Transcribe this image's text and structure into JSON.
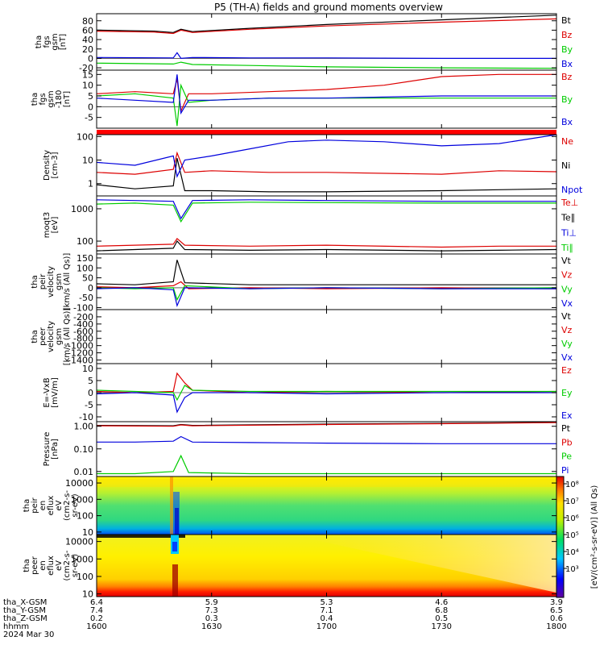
{
  "title": "P5 (TH-A) fields and ground moments overview",
  "colors": {
    "black": "#000000",
    "red": "#dd0000",
    "green": "#00cc00",
    "blue": "#0000dd"
  },
  "chart_data": [
    {
      "type": "line",
      "id": "fgs_gsm",
      "ylabel": [
        "tha",
        "fgs",
        "gsm",
        "[nT]"
      ],
      "ylim": [
        -25,
        95
      ],
      "yticks": [
        -20,
        0,
        20,
        40,
        60,
        80
      ],
      "yticklabels": [
        "-20",
        "0",
        "20",
        "40",
        "60",
        "80"
      ],
      "legend": [
        {
          "name": "Bt",
          "color": "black"
        },
        {
          "name": "Bz",
          "color": "red"
        },
        {
          "name": "By",
          "color": "green"
        },
        {
          "name": "Bx",
          "color": "blue"
        }
      ],
      "series": [
        {
          "name": "Bt",
          "color": "black",
          "x": [
            1600,
            1615,
            1620,
            1622,
            1625,
            1640,
            1700,
            1730,
            1800
          ],
          "y": [
            60,
            58,
            55,
            62,
            57,
            64,
            72,
            82,
            92
          ]
        },
        {
          "name": "Bz",
          "color": "red",
          "x": [
            1600,
            1615,
            1620,
            1622,
            1625,
            1640,
            1700,
            1730,
            1800
          ],
          "y": [
            58,
            56,
            53,
            60,
            55,
            62,
            69,
            77,
            84
          ]
        },
        {
          "name": "By",
          "color": "green",
          "x": [
            1600,
            1620,
            1622,
            1625,
            1640,
            1700,
            1730,
            1800
          ],
          "y": [
            -10,
            -12,
            -8,
            -13,
            -15,
            -18,
            -20,
            -21
          ]
        },
        {
          "name": "Bx",
          "color": "blue",
          "x": [
            1600,
            1620,
            1621,
            1622,
            1625,
            1640,
            1700,
            1730,
            1800
          ],
          "y": [
            2,
            1,
            12,
            0,
            2,
            1,
            1,
            0,
            0
          ]
        }
      ]
    },
    {
      "type": "line",
      "id": "fgs_dsl",
      "ylabel": [
        "tha",
        "fgs",
        "gsm",
        "-180",
        "[nT]"
      ],
      "ylim": [
        -10,
        17
      ],
      "yticks": [
        -5,
        0,
        5,
        10,
        15
      ],
      "yticklabels": [
        "-5",
        "0",
        "5",
        "10",
        "15"
      ],
      "legend": [
        {
          "name": "Bz",
          "color": "red"
        },
        {
          "name": "By",
          "color": "green"
        },
        {
          "name": "Bx",
          "color": "blue"
        }
      ],
      "series": [
        {
          "name": "Bz",
          "color": "red",
          "x": [
            1600,
            1610,
            1620,
            1621,
            1622,
            1624,
            1630,
            1645,
            1700,
            1715,
            1730,
            1745,
            1800
          ],
          "y": [
            6,
            7,
            6,
            13,
            -2,
            6,
            6,
            7,
            8,
            10,
            14,
            15,
            15
          ]
        },
        {
          "name": "By",
          "color": "green",
          "x": [
            1600,
            1610,
            1620,
            1621,
            1622,
            1624,
            1630,
            1645,
            1700,
            1730,
            1800
          ],
          "y": [
            5,
            6,
            4,
            -9,
            10,
            2,
            3,
            4,
            4,
            4,
            4
          ]
        },
        {
          "name": "Bx",
          "color": "blue",
          "x": [
            1600,
            1610,
            1620,
            1621,
            1622,
            1624,
            1630,
            1645,
            1700,
            1730,
            1800
          ],
          "y": [
            4,
            3,
            2,
            15,
            -3,
            3,
            3,
            4,
            4,
            5,
            5
          ]
        }
      ]
    },
    {
      "type": "line",
      "id": "density",
      "ylabel": [
        "Density",
        "[cm-3]"
      ],
      "yscale": "log",
      "ylim": [
        0.3,
        120
      ],
      "yticks": [
        1,
        10,
        100
      ],
      "yticklabels": [
        "1",
        "10",
        "100"
      ],
      "legend": [
        {
          "name": "Ne",
          "color": "red"
        },
        {
          "name": "Ni",
          "color": "black"
        },
        {
          "name": "Npot",
          "color": "blue"
        }
      ],
      "series": [
        {
          "name": "Ne",
          "color": "red",
          "x": [
            1600,
            1610,
            1620,
            1621,
            1623,
            1630,
            1645,
            1700,
            1730,
            1745,
            1800
          ],
          "y": [
            3,
            2.5,
            4,
            20,
            3,
            3.5,
            3,
            3,
            2.5,
            3.5,
            3.2
          ]
        },
        {
          "name": "Ni",
          "color": "black",
          "x": [
            1600,
            1610,
            1620,
            1621,
            1623,
            1630,
            1645,
            1700,
            1730,
            1745,
            1800
          ],
          "y": [
            0.9,
            0.6,
            0.8,
            12,
            0.5,
            0.5,
            0.45,
            0.45,
            0.5,
            0.55,
            0.6
          ]
        },
        {
          "name": "Npot",
          "color": "blue",
          "x": [
            1600,
            1610,
            1620,
            1621,
            1623,
            1630,
            1640,
            1650,
            1700,
            1715,
            1730,
            1745,
            1800
          ],
          "y": [
            8,
            6,
            15,
            2,
            10,
            15,
            30,
            60,
            70,
            60,
            40,
            50,
            120
          ]
        }
      ]
    },
    {
      "type": "line",
      "id": "temperature",
      "ylabel": [
        "moqt3",
        "[eV]"
      ],
      "yscale": "log",
      "ylim": [
        40,
        2500
      ],
      "yticks": [
        100,
        1000
      ],
      "yticklabels": [
        "100",
        "1000"
      ],
      "legend": [
        {
          "name": "Te⊥",
          "color": "red"
        },
        {
          "name": "Te∥",
          "color": "black"
        },
        {
          "name": "Ti⊥",
          "color": "blue"
        },
        {
          "name": "Ti∥",
          "color": "green"
        }
      ],
      "series": [
        {
          "name": "Ti⊥",
          "color": "blue",
          "x": [
            1600,
            1610,
            1620,
            1622,
            1625,
            1640,
            1700,
            1730,
            1800
          ],
          "y": [
            1900,
            1800,
            1700,
            500,
            1800,
            1900,
            1800,
            1700,
            1700
          ]
        },
        {
          "name": "Ti∥",
          "color": "green",
          "x": [
            1600,
            1610,
            1620,
            1622,
            1625,
            1640,
            1700,
            1730,
            1800
          ],
          "y": [
            1400,
            1500,
            1300,
            400,
            1500,
            1600,
            1550,
            1500,
            1500
          ]
        },
        {
          "name": "Te⊥",
          "color": "red",
          "x": [
            1600,
            1610,
            1620,
            1621,
            1623,
            1640,
            1700,
            1730,
            1745,
            1800
          ],
          "y": [
            70,
            75,
            80,
            120,
            75,
            70,
            75,
            65,
            70,
            70
          ]
        },
        {
          "name": "Te∥",
          "color": "black",
          "x": [
            1600,
            1610,
            1620,
            1621,
            1623,
            1640,
            1700,
            1730,
            1745,
            1800
          ],
          "y": [
            50,
            55,
            60,
            100,
            55,
            52,
            55,
            50,
            52,
            55
          ]
        }
      ]
    },
    {
      "type": "line",
      "id": "peir_velocity",
      "ylabel": [
        "tha",
        "peir",
        "velocity",
        "gsm",
        "[km/s (All Qs)]"
      ],
      "ylim": [
        -110,
        170
      ],
      "yticks": [
        -100,
        -50,
        0,
        50,
        100,
        150
      ],
      "yticklabels": [
        "-100",
        "-50",
        "0",
        "50",
        "100",
        "150"
      ],
      "legend": [
        {
          "name": "Vt",
          "color": "black"
        },
        {
          "name": "Vz",
          "color": "red"
        },
        {
          "name": "Vy",
          "color": "green"
        },
        {
          "name": "Vx",
          "color": "blue"
        }
      ],
      "series": [
        {
          "name": "Vz",
          "color": "red",
          "x": [
            1600,
            1610,
            1620,
            1622,
            1624,
            1640,
            1700,
            1730,
            1800
          ],
          "y": [
            5,
            0,
            10,
            30,
            -5,
            0,
            -5,
            0,
            -5
          ]
        },
        {
          "name": "Vy",
          "color": "green",
          "x": [
            1600,
            1610,
            1620,
            1621,
            1623,
            1640,
            1700,
            1730,
            1800
          ],
          "y": [
            0,
            -5,
            0,
            -60,
            10,
            -5,
            0,
            -5,
            0
          ]
        },
        {
          "name": "Vx",
          "color": "blue",
          "x": [
            1600,
            1610,
            1620,
            1621,
            1623,
            1640,
            1700,
            1730,
            1800
          ],
          "y": [
            -5,
            0,
            -10,
            -90,
            0,
            -5,
            0,
            -5,
            -5
          ]
        },
        {
          "name": "Vt",
          "color": "black",
          "x": [
            1600,
            1610,
            1620,
            1621,
            1623,
            1640,
            1700,
            1730,
            1800
          ],
          "y": [
            20,
            15,
            30,
            140,
            25,
            15,
            15,
            15,
            15
          ]
        }
      ]
    },
    {
      "type": "line",
      "id": "peer_velocity",
      "ylabel": [
        "tha",
        "peer",
        "velocity",
        "gsm",
        "[km/s (All Qs)]"
      ],
      "ylim": [
        -1500,
        0
      ],
      "yticks": [
        -1400,
        -1200,
        -1000,
        -800,
        -600,
        -400,
        -200
      ],
      "yticklabels": [
        "-1400",
        "-1200",
        "-1000",
        "-800",
        "-600",
        "-400",
        "-200"
      ],
      "legend": [
        {
          "name": "Vt",
          "color": "black"
        },
        {
          "name": "Vz",
          "color": "red"
        },
        {
          "name": "Vy",
          "color": "green"
        },
        {
          "name": "Vx",
          "color": "blue"
        }
      ],
      "series": []
    },
    {
      "type": "line",
      "id": "efield",
      "ylabel": [
        "E=-VxB",
        "[mV/m]"
      ],
      "ylim": [
        -12,
        12
      ],
      "yticks": [
        -10,
        -5,
        0,
        5,
        10
      ],
      "yticklabels": [
        "-10",
        "-5",
        "0",
        "5",
        "10"
      ],
      "legend": [
        {
          "name": "Ez",
          "color": "red"
        },
        {
          "name": "Ey",
          "color": "green"
        },
        {
          "name": "Ex",
          "color": "blue"
        }
      ],
      "series": [
        {
          "name": "Ez",
          "color": "red",
          "x": [
            1600,
            1610,
            1620,
            1621,
            1623,
            1625,
            1640,
            1700,
            1730,
            1800
          ],
          "y": [
            0.5,
            0,
            0.5,
            8,
            4,
            1,
            0,
            0.5,
            0,
            0.5
          ]
        },
        {
          "name": "Ey",
          "color": "green",
          "x": [
            1600,
            1610,
            1620,
            1621,
            1623,
            1625,
            1640,
            1700,
            1730,
            1800
          ],
          "y": [
            1,
            0.5,
            0,
            -3,
            3,
            1,
            0.5,
            0.5,
            0.5,
            0.5
          ]
        },
        {
          "name": "Ex",
          "color": "blue",
          "x": [
            1600,
            1610,
            1620,
            1621,
            1623,
            1625,
            1640,
            1700,
            1730,
            1800
          ],
          "y": [
            -0.5,
            0,
            -1,
            -8,
            -2,
            0,
            0,
            -0.5,
            0,
            0
          ]
        }
      ]
    },
    {
      "type": "line",
      "id": "pressure",
      "ylabel": [
        "Pressure",
        "[nPa]"
      ],
      "yscale": "log",
      "ylim": [
        0.006,
        1.6
      ],
      "yticks": [
        0.01,
        0.1,
        1
      ],
      "yticklabels": [
        "0.01",
        "0.10",
        "1.00"
      ],
      "legend": [
        {
          "name": "Pt",
          "color": "black"
        },
        {
          "name": "Pb",
          "color": "red"
        },
        {
          "name": "Pe",
          "color": "green"
        },
        {
          "name": "Pi",
          "color": "blue"
        }
      ],
      "series": [
        {
          "name": "Pt",
          "color": "black",
          "x": [
            1600,
            1620,
            1622,
            1625,
            1700,
            1730,
            1800
          ],
          "y": [
            1.1,
            1.05,
            1.2,
            1.1,
            1.25,
            1.35,
            1.5
          ]
        },
        {
          "name": "Pb",
          "color": "red",
          "x": [
            1600,
            1620,
            1622,
            1625,
            1700,
            1730,
            1800
          ],
          "y": [
            1.05,
            1.0,
            1.15,
            1.05,
            1.2,
            1.3,
            1.45
          ]
        },
        {
          "name": "Pi",
          "color": "blue",
          "x": [
            1600,
            1610,
            1620,
            1622,
            1625,
            1640,
            1700,
            1730,
            1800
          ],
          "y": [
            0.2,
            0.2,
            0.22,
            0.35,
            0.2,
            0.19,
            0.18,
            0.17,
            0.17
          ]
        },
        {
          "name": "Pe",
          "color": "green",
          "x": [
            1600,
            1610,
            1620,
            1622,
            1624,
            1640,
            1700,
            1730,
            1800
          ],
          "y": [
            0.008,
            0.008,
            0.01,
            0.05,
            0.009,
            0.008,
            0.008,
            0.008,
            0.008
          ]
        }
      ]
    },
    {
      "type": "heatmap",
      "id": "peir_eflux",
      "ylabel": [
        "tha",
        "peir",
        "en",
        "eflux",
        "eV",
        "(cm2-s-",
        "sr-eV)"
      ],
      "yscale": "log",
      "ylim": [
        7,
        25000
      ],
      "yticks": [
        10,
        100,
        1000,
        10000
      ],
      "yticklabels": [
        "10",
        "100",
        "1000",
        "10000"
      ]
    },
    {
      "type": "heatmap",
      "id": "peer_eflux",
      "ylabel": [
        "tha",
        "peer",
        "en",
        "eflux",
        "eV",
        "(cm2-s-",
        "sr-eV)"
      ],
      "yscale": "log",
      "ylim": [
        7,
        25000
      ],
      "yticks": [
        10,
        100,
        1000,
        10000
      ],
      "yticklabels": [
        "10",
        "100",
        "1000",
        "10000"
      ]
    }
  ],
  "colorbar": {
    "ticklabels": [
      "10⁸",
      "10⁷",
      "10⁶",
      "10⁵",
      "10⁴",
      "10³"
    ],
    "label": "[eV/(cm²-s-sr-eV)] (All Qs)"
  },
  "time_axis": {
    "ticks": [
      1600,
      1630,
      1700,
      1730,
      1800
    ],
    "rows": [
      {
        "label": "tha_X-GSM",
        "values": [
          "6.4",
          "5.9",
          "5.3",
          "4.6",
          "3.9"
        ]
      },
      {
        "label": "tha_Y-GSM",
        "values": [
          "7.4",
          "7.3",
          "7.1",
          "6.8",
          "6.5"
        ]
      },
      {
        "label": "tha_Z-GSM",
        "values": [
          "0.2",
          "0.3",
          "0.4",
          "0.5",
          "0.6"
        ]
      },
      {
        "label": "hhmm",
        "values": [
          "1600",
          "1630",
          "1700",
          "1730",
          "1800"
        ]
      }
    ],
    "date": "2024 Mar 30"
  }
}
